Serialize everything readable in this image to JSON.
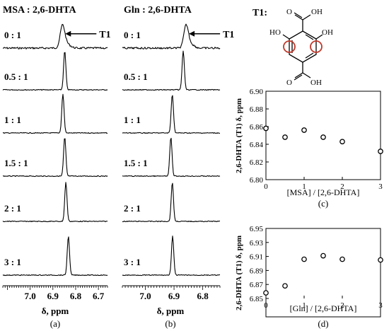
{
  "chart_data": [
    {
      "type": "line",
      "panel_label": "(a)",
      "title": "MSA : 2,6-DHTA",
      "arrow_label": "T1",
      "xlabel": "δ, ppm",
      "x_ticks": [
        "7.0",
        "6.9",
        "6.8",
        "6.7"
      ],
      "xlim": [
        7.12,
        6.66
      ],
      "series": [
        {
          "ratio_label": "0 : 1",
          "peak_ppm": 6.858,
          "rel_height": 0.55
        },
        {
          "ratio_label": "0.5 : 1",
          "peak_ppm": 6.848,
          "rel_height": 1.0
        },
        {
          "ratio_label": "1 : 1",
          "peak_ppm": 6.856,
          "rel_height": 1.0
        },
        {
          "ratio_label": "1.5 : 1",
          "peak_ppm": 6.848,
          "rel_height": 1.0
        },
        {
          "ratio_label": "2 : 1",
          "peak_ppm": 6.843,
          "rel_height": 1.0
        },
        {
          "ratio_label": "3 : 1",
          "peak_ppm": 6.832,
          "rel_height": 1.0
        }
      ]
    },
    {
      "type": "line",
      "panel_label": "(b)",
      "title": "Gln : 2,6-DHTA",
      "arrow_label": "T1",
      "xlabel": "δ, ppm",
      "x_ticks": [
        "7.0",
        "6.9",
        "6.8"
      ],
      "xlim": [
        7.08,
        6.74
      ],
      "series": [
        {
          "ratio_label": "0 : 1",
          "peak_ppm": 6.858,
          "rel_height": 0.55
        },
        {
          "ratio_label": "0.5 : 1",
          "peak_ppm": 6.868,
          "rel_height": 1.0
        },
        {
          "ratio_label": "1 : 1",
          "peak_ppm": 6.906,
          "rel_height": 1.0
        },
        {
          "ratio_label": "1.5 : 1",
          "peak_ppm": 6.911,
          "rel_height": 1.0
        },
        {
          "ratio_label": "2 : 1",
          "peak_ppm": 6.906,
          "rel_height": 1.0
        },
        {
          "ratio_label": "3 : 1",
          "peak_ppm": 6.905,
          "rel_height": 1.0
        }
      ]
    },
    {
      "type": "scatter",
      "panel_label": "(c)",
      "xlabel": "[MSA] / [2,6-DHTA]",
      "ylabel": "2,6-DHTA (T1) δ, ppm",
      "xlim": [
        0,
        3
      ],
      "ylim": [
        6.8,
        6.9
      ],
      "x_ticks": [
        "0",
        "1",
        "2",
        "3"
      ],
      "y_ticks": [
        "6.80",
        "6.82",
        "6.84",
        "6.86",
        "6.88",
        "6.90"
      ],
      "x": [
        0,
        0.5,
        1,
        1.5,
        2,
        3
      ],
      "y": [
        6.858,
        6.848,
        6.856,
        6.848,
        6.843,
        6.832
      ]
    },
    {
      "type": "scatter",
      "panel_label": "(d)",
      "xlabel": "[Gln] / [2,6-DHTA]",
      "ylabel": "2,6-DHTA (T1) δ, ppm",
      "xlim": [
        0,
        3
      ],
      "ylim": [
        6.85,
        6.95
      ],
      "x_ticks": [
        "0",
        "1",
        "2",
        "3"
      ],
      "y_ticks": [
        "6.85",
        "6.87",
        "6.89",
        "6.91",
        "6.93",
        "6.95"
      ],
      "x": [
        0,
        0.5,
        1,
        1.5,
        2,
        3
      ],
      "y": [
        6.858,
        6.868,
        6.906,
        6.911,
        6.906,
        6.905
      ]
    }
  ],
  "structure": {
    "label": "T1:",
    "atom_labels": [
      "O",
      "OH",
      "HO",
      "OH",
      "O",
      "OH"
    ],
    "highlight_color": "#c0392b"
  }
}
